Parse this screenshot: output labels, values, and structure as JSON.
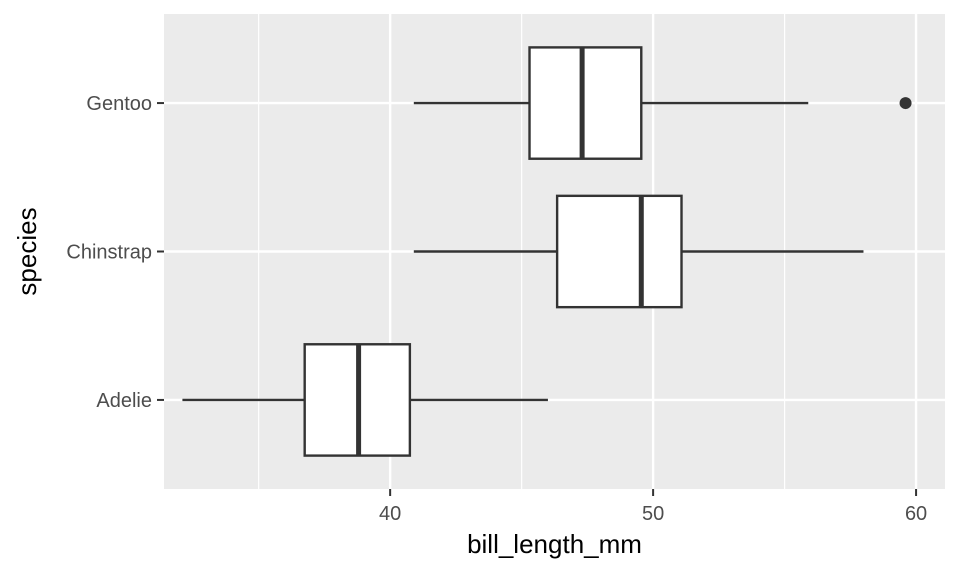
{
  "chart_data": {
    "type": "boxplot",
    "orientation": "horizontal",
    "xlabel": "bill_length_mm",
    "ylabel": "species",
    "xlim": [
      31.4,
      61.1
    ],
    "x_ticks": [
      40,
      50,
      60
    ],
    "x_minor_ticks": [
      35,
      45,
      55
    ],
    "categories": [
      "Adelie",
      "Chinstrap",
      "Gentoo"
    ],
    "boxes": [
      {
        "category": "Adelie",
        "whisker_low": 32.1,
        "q1": 36.75,
        "median": 38.8,
        "q3": 40.75,
        "whisker_high": 46.0,
        "outliers": []
      },
      {
        "category": "Chinstrap",
        "whisker_low": 40.9,
        "q1": 46.35,
        "median": 49.55,
        "q3": 51.08,
        "whisker_high": 58.0,
        "outliers": []
      },
      {
        "category": "Gentoo",
        "whisker_low": 40.9,
        "q1": 45.3,
        "median": 47.3,
        "q3": 49.55,
        "whisker_high": 55.9,
        "outliers": [
          59.6
        ]
      }
    ],
    "grid": true,
    "legend": "none"
  },
  "colors": {
    "panel_background": "#ebebeb",
    "grid_line": "#ffffff",
    "box_fill": "#ffffff",
    "box_stroke": "#333333",
    "tick_label": "#4d4d4d",
    "tick_mark": "#333333"
  }
}
